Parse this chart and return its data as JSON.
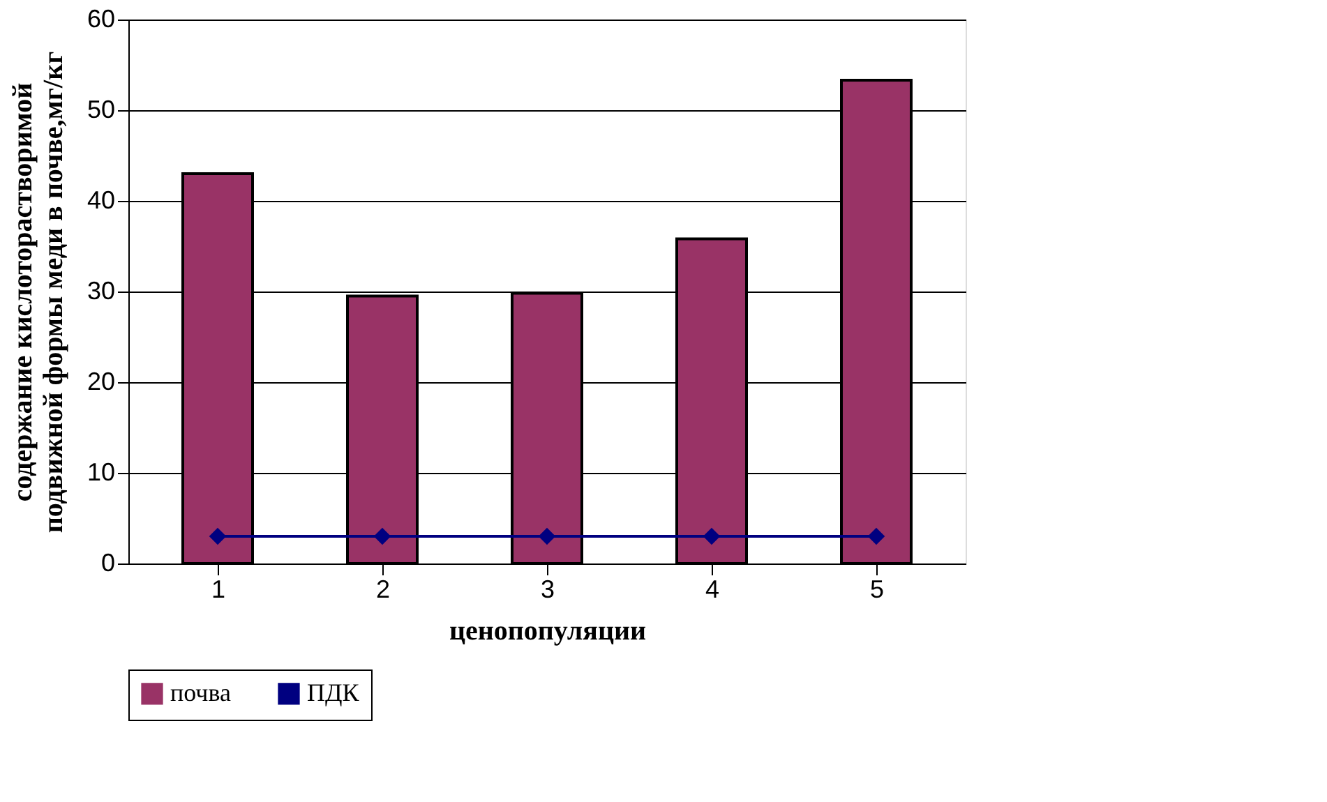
{
  "chart_data": {
    "type": "bar",
    "xlabel": "ценопопуляции",
    "ylabel": "содержание кислоторастворимой подвижной формы меди в почве,мг/кг",
    "categories": [
      "1",
      "2",
      "3",
      "4",
      "5"
    ],
    "series": [
      {
        "name": "почва",
        "color": "#993366",
        "values": [
          43,
          29.5,
          29.8,
          35.8,
          53.3
        ]
      },
      {
        "name": "ПДК",
        "type": "line",
        "color": "#000080",
        "values": [
          3,
          3,
          3,
          3,
          3
        ],
        "marker": "diamond"
      }
    ],
    "ylim": [
      0,
      60
    ],
    "yticks": [
      0,
      10,
      20,
      30,
      40,
      50,
      60
    ],
    "grid": "y",
    "legend": "bottom"
  }
}
